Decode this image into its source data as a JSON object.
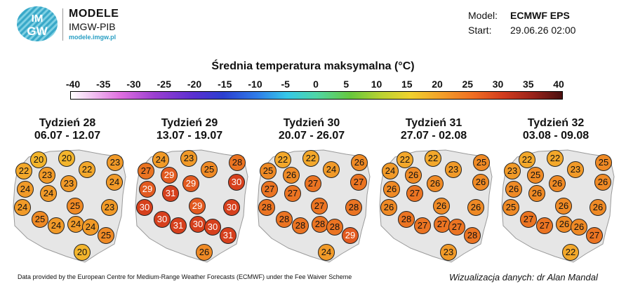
{
  "header": {
    "logo_letters_top": "IM",
    "logo_letters_bottom": "GW",
    "brand_line1": "MODELE",
    "brand_line2": "IMGW-PIB",
    "brand_url": "modele.imgw.pl",
    "model_label": "Model:",
    "model_value": "ECMWF EPS",
    "start_label": "Start:",
    "start_value": "29.06.26 02:00"
  },
  "title": "Średnia temperatura maksymalna (°C)",
  "scale": {
    "ticks": [
      "-40",
      "-35",
      "-30",
      "-25",
      "-20",
      "-15",
      "-10",
      "-5",
      "0",
      "5",
      "10",
      "15",
      "20",
      "25",
      "30",
      "35",
      "40"
    ]
  },
  "weeks": [
    {
      "name": "Tydzień 28",
      "dates": "06.07 - 12.07",
      "values": [
        20,
        20,
        22,
        22,
        23,
        23,
        24,
        24,
        23,
        24,
        24,
        23,
        25,
        25,
        24,
        24,
        24,
        25,
        20
      ]
    },
    {
      "name": "Tydzień 29",
      "dates": "13.07 - 19.07",
      "values": [
        24,
        23,
        27,
        25,
        28,
        29,
        30,
        29,
        29,
        31,
        30,
        30,
        30,
        29,
        31,
        30,
        30,
        31,
        26
      ]
    },
    {
      "name": "Tydzień 30",
      "dates": "20.07 - 26.07",
      "values": [
        22,
        22,
        25,
        24,
        26,
        26,
        27,
        27,
        27,
        27,
        28,
        28,
        28,
        27,
        28,
        28,
        28,
        29,
        24
      ]
    },
    {
      "name": "Tydzień 31",
      "dates": "27.07 - 02.08",
      "values": [
        22,
        22,
        24,
        23,
        25,
        26,
        26,
        26,
        26,
        27,
        26,
        26,
        28,
        26,
        27,
        27,
        27,
        28,
        23
      ]
    },
    {
      "name": "Tydzień 32",
      "dates": "03.08 - 09.08",
      "values": [
        22,
        22,
        23,
        23,
        25,
        25,
        26,
        26,
        26,
        26,
        25,
        26,
        27,
        26,
        27,
        26,
        26,
        27,
        22
      ]
    }
  ],
  "footer": {
    "credit": "Data provided by the European Centre for Medium-Range Weather Forecasts (ECMWF) under the Fee Waiver Scheme",
    "author": "Wizualizacja danych: dr Alan Mandal"
  }
}
